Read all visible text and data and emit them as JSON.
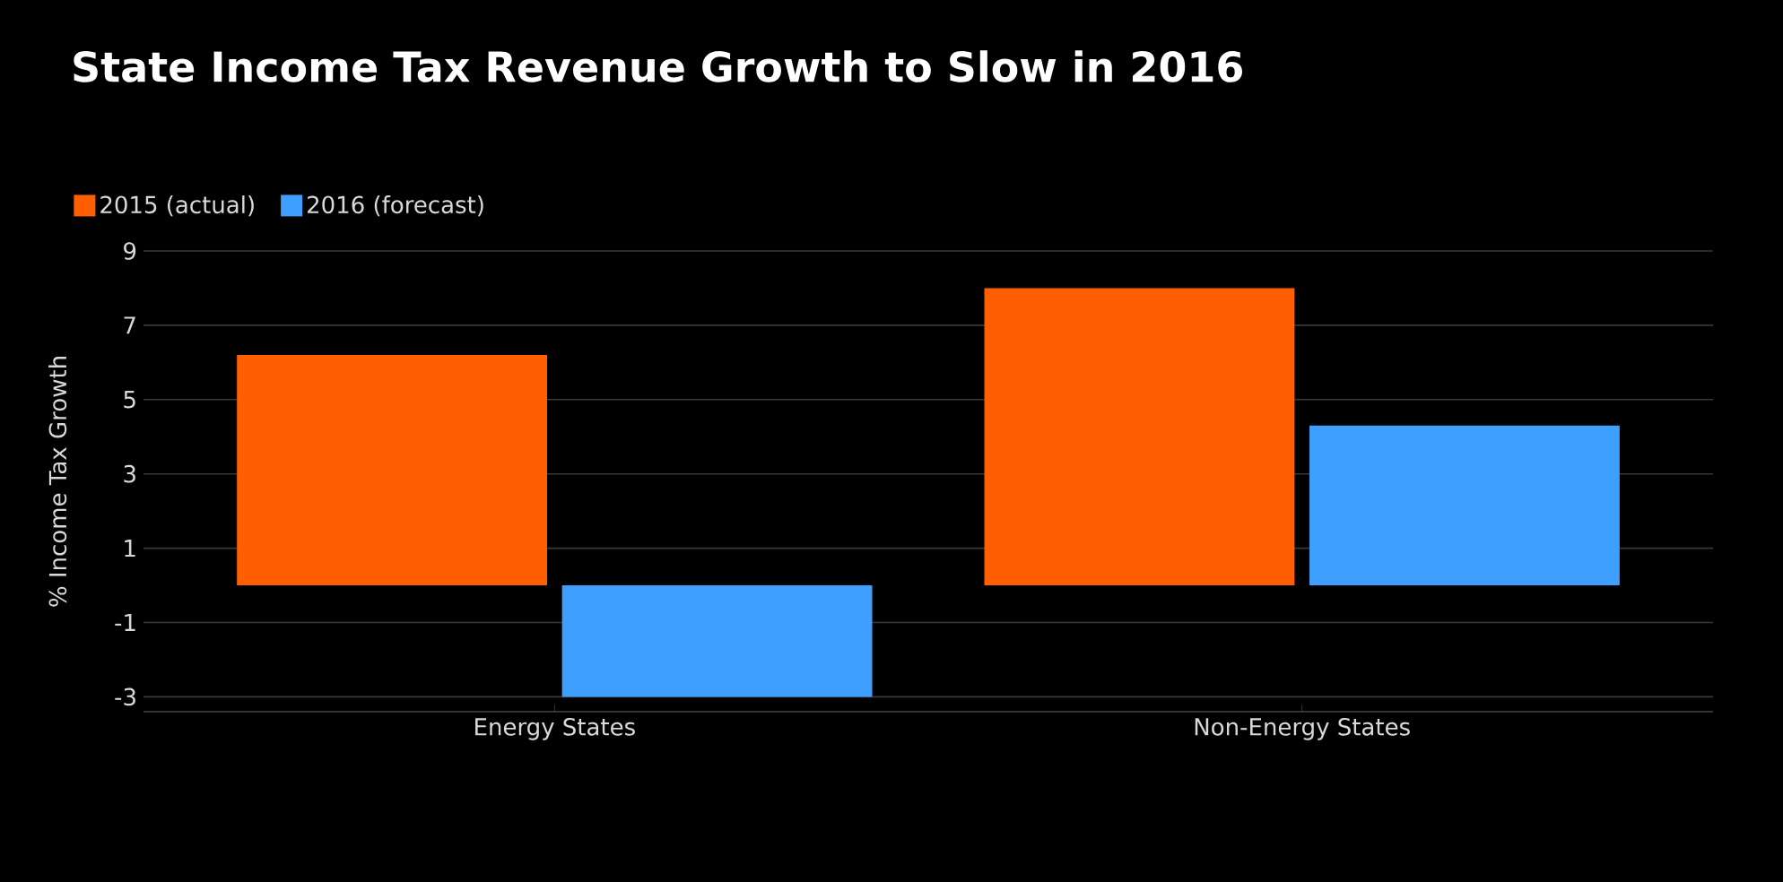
{
  "chart_data": {
    "type": "bar",
    "title": "State Income Tax Revenue Growth to Slow in 2016",
    "ylabel": "% Income Tax Growth",
    "categories": [
      "Energy States",
      "Non-Energy States"
    ],
    "series": [
      {
        "name": "2015 (actual)",
        "color": "#ff5f00",
        "values": [
          6.2,
          8.0
        ]
      },
      {
        "name": "2016 (forecast)",
        "color": "#3e9ffe",
        "values": [
          -3.0,
          4.3
        ]
      }
    ],
    "ylim": [
      -3.4,
      9
    ],
    "yticks": [
      -3,
      -1,
      1,
      3,
      5,
      7,
      9
    ],
    "grid": "y",
    "legend": "top left"
  }
}
